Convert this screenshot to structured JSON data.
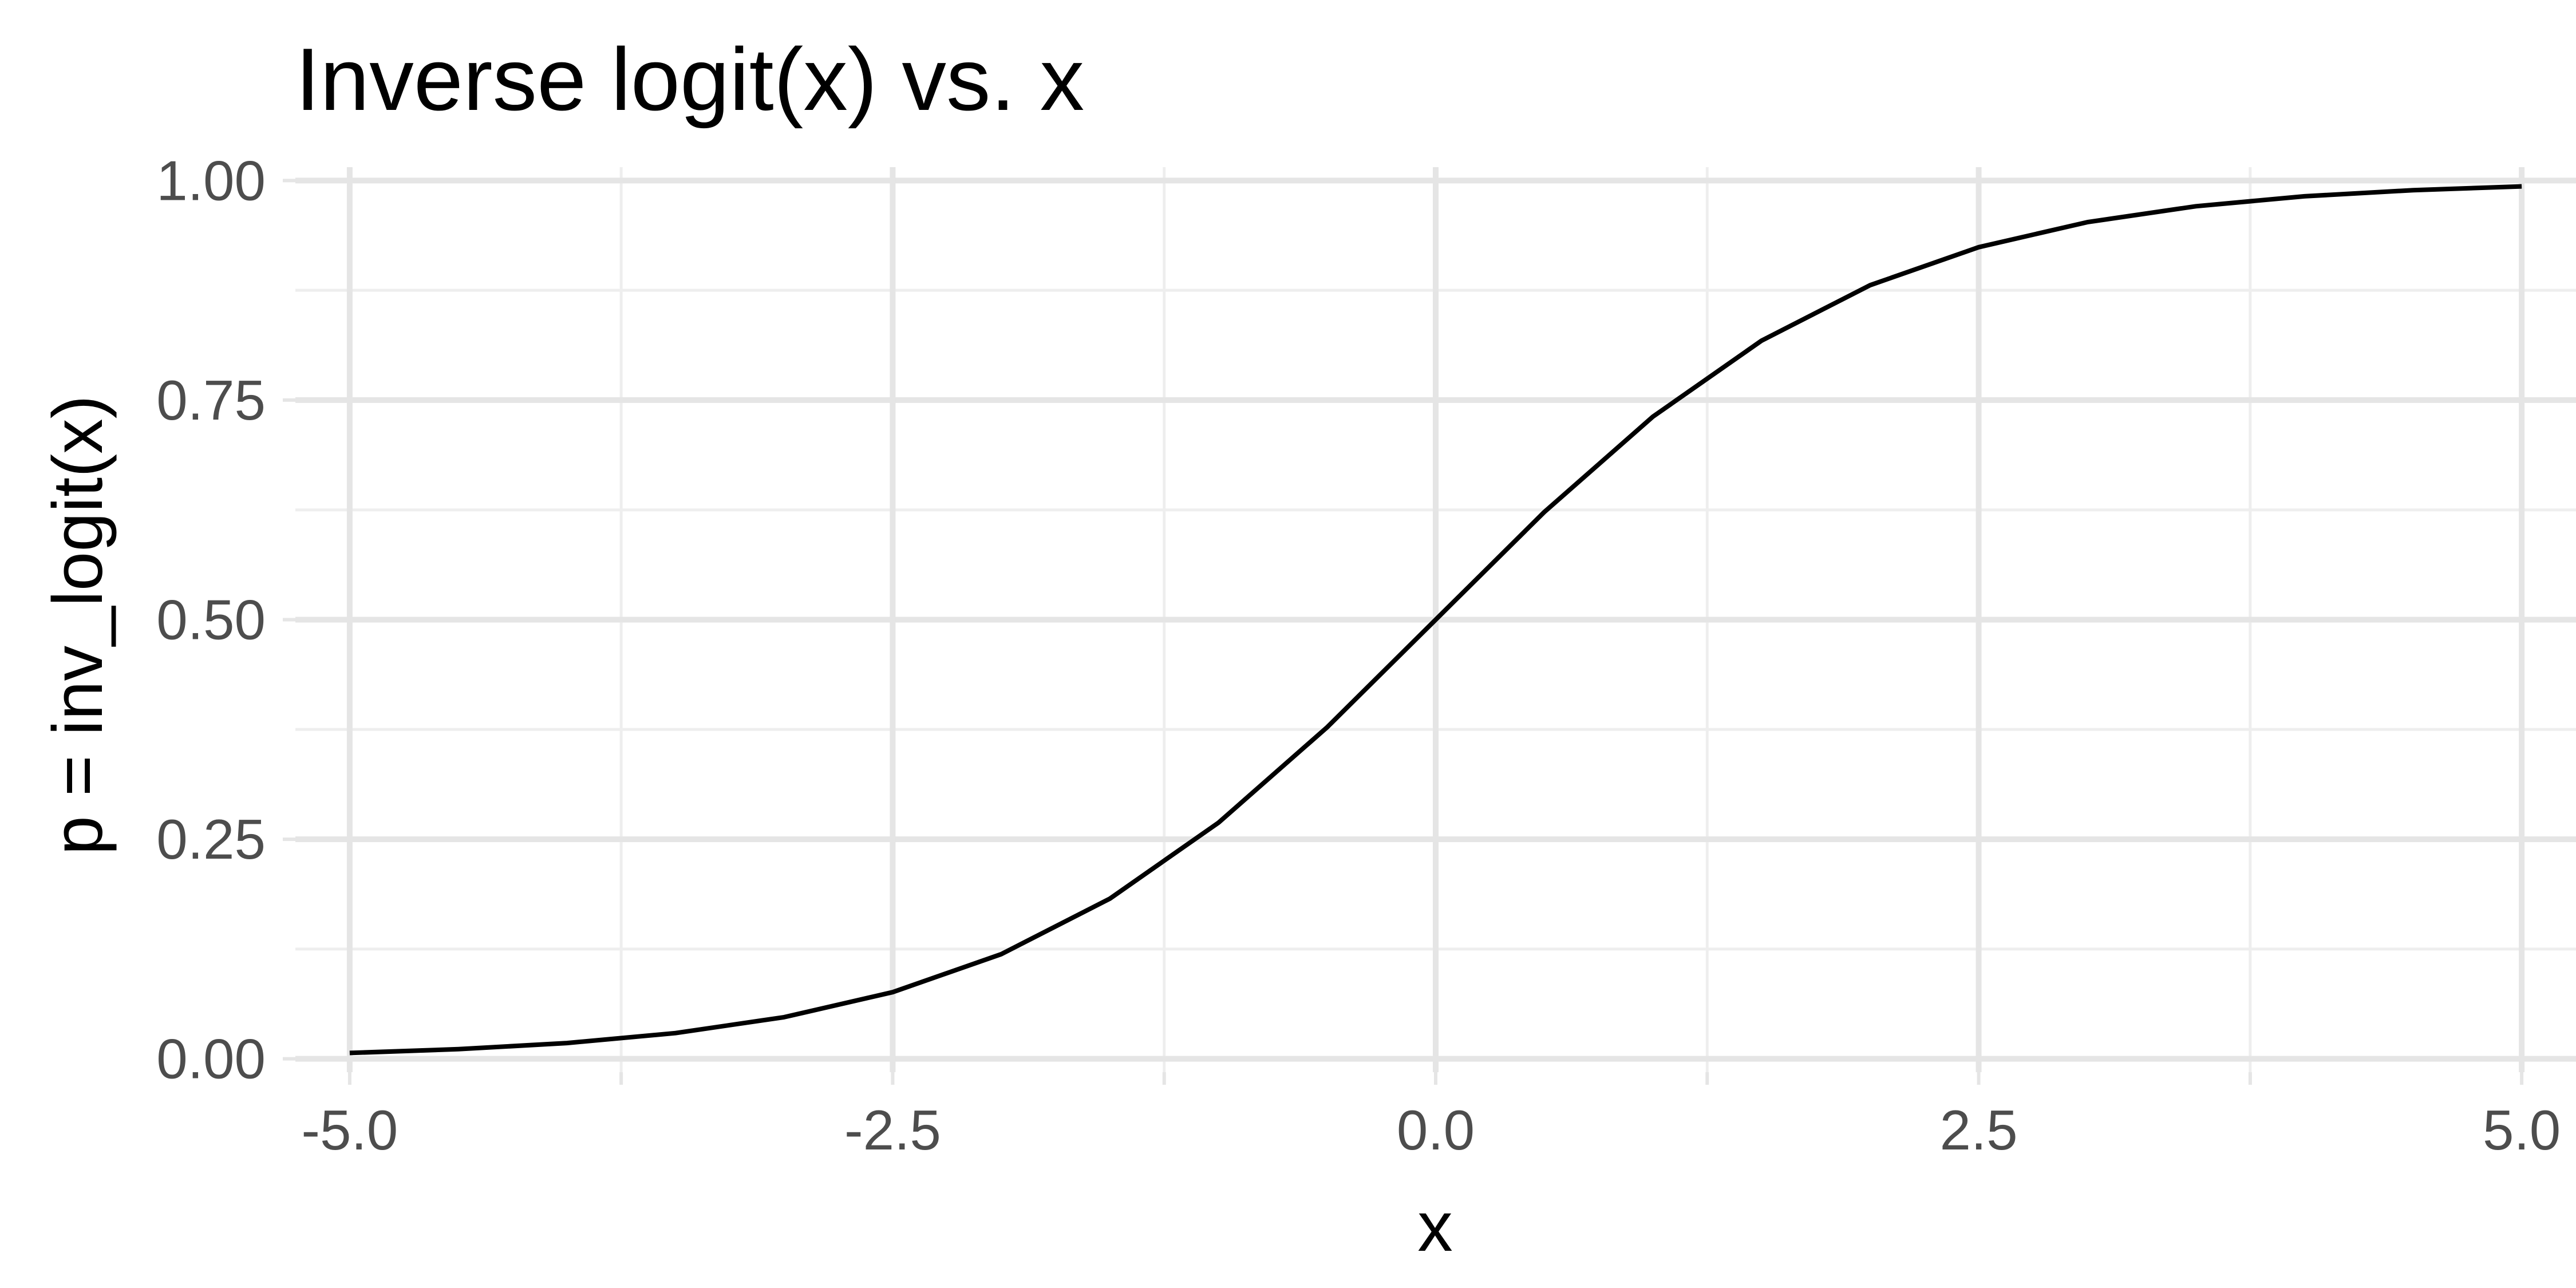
{
  "chart_data": {
    "type": "line",
    "title": "Inverse logit(x) vs. x",
    "xlabel": "x",
    "ylabel": "p = inv_logit(x)",
    "xlim": [
      -5.25,
      5.25
    ],
    "ylim": [
      -0.0152,
      1.0152
    ],
    "x_ticks": [
      -5.0,
      -2.5,
      0.0,
      2.5,
      5.0
    ],
    "x_tick_labels": [
      "-5.0",
      "-2.5",
      "0.0",
      "2.5",
      "5.0"
    ],
    "x_minor_ticks": [
      -3.75,
      -1.25,
      1.25,
      3.75
    ],
    "y_ticks": [
      0.0,
      0.25,
      0.5,
      0.75,
      1.0
    ],
    "y_tick_labels": [
      "0.00",
      "0.25",
      "0.50",
      "0.75",
      "1.00"
    ],
    "y_minor_ticks": [
      0.125,
      0.375,
      0.625,
      0.875
    ],
    "grid": true,
    "legend": "none",
    "series": [
      {
        "color": "#000000",
        "x": [
          -5.0,
          -4.5,
          -4.0,
          -3.5,
          -3.0,
          -2.5,
          -2.0,
          -1.5,
          -1.0,
          -0.5,
          0.0,
          0.5,
          1.0,
          1.5,
          2.0,
          2.5,
          3.0,
          3.5,
          4.0,
          4.5,
          5.0
        ],
        "y": [
          0.0067,
          0.011,
          0.018,
          0.0293,
          0.0474,
          0.0759,
          0.1192,
          0.1824,
          0.2689,
          0.3775,
          0.5,
          0.6225,
          0.7311,
          0.8176,
          0.8808,
          0.9241,
          0.9526,
          0.9707,
          0.982,
          0.989,
          0.9933
        ]
      }
    ]
  }
}
